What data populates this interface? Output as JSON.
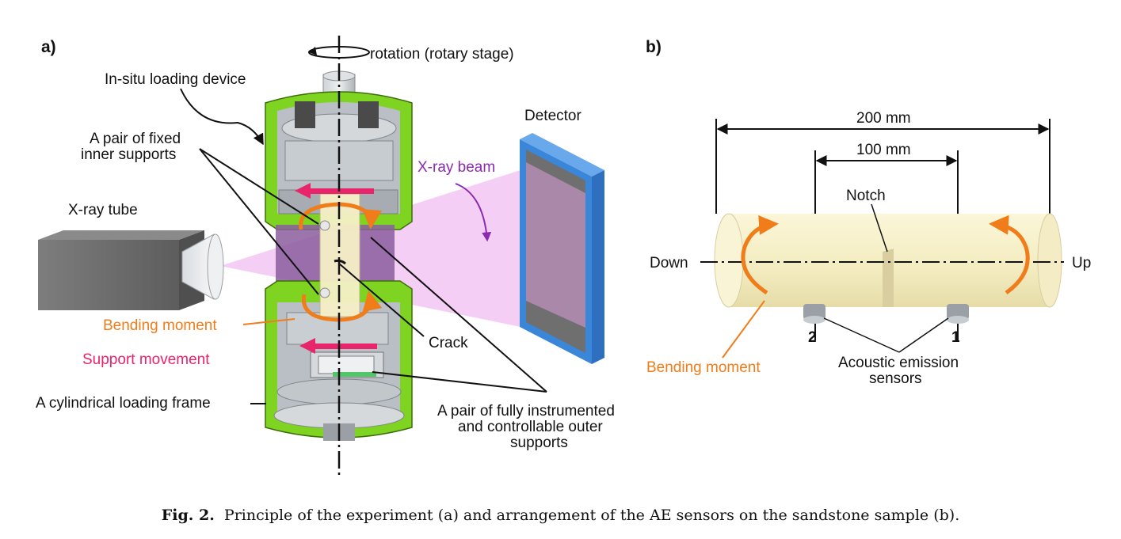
{
  "panel_a": {
    "label": "a)",
    "rotation": "rotation (rotary stage)",
    "loading_device": "In-situ loading device",
    "inner_supports_1": "A pair of fixed",
    "inner_supports_2": "inner supports",
    "detector": "Detector",
    "xray_beam": "X-ray beam",
    "xray_tube": "X-ray tube",
    "bending_moment": "Bending moment",
    "support_movement": "Support movement",
    "crack": "Crack",
    "loading_frame": "A cylindrical loading frame",
    "outer_supports_1": "A pair of fully instrumented",
    "outer_supports_2": "and controllable outer",
    "outer_supports_3": "supports"
  },
  "panel_b": {
    "label": "b)",
    "dim_200": "200 mm",
    "dim_100": "100 mm",
    "notch": "Notch",
    "down": "Down",
    "up": "Up",
    "sensor_2": "2",
    "sensor_1": "1",
    "bending_moment": "Bending moment",
    "ae_1": "Acoustic emission",
    "ae_2": "sensors"
  },
  "caption": {
    "prefix": "Fig. 2.",
    "text": "Principle of the experiment (a) and arrangement of the AE sensors on the sandstone sample (b)."
  },
  "colors": {
    "frame_green": "#7fd321",
    "detector_blue": "#3a86d8",
    "beam_pink": "#f3c6f3",
    "bending_orange": "#f07d1a",
    "support_pink": "#e8246a",
    "beam_label_purple": "#8a2bb0",
    "sample_cream": "#f6f0c8"
  }
}
